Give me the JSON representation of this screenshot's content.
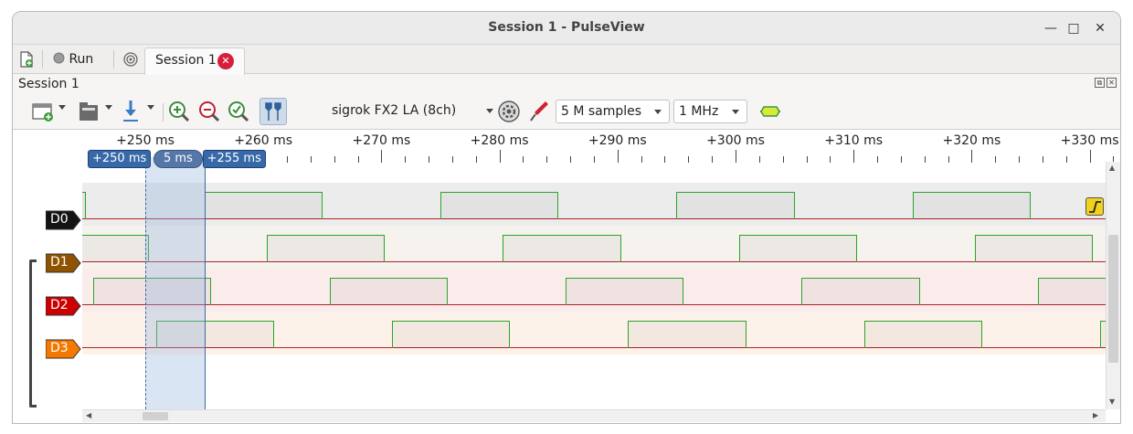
{
  "window": {
    "title": "Session 1 - PulseView",
    "controls": [
      "minimize-icon",
      "maximize-icon",
      "close-icon"
    ]
  },
  "tabbar": {
    "new_session_icon": "new-document-icon",
    "run_label": "Run",
    "run_icon": "record-dot-icon",
    "tab_label": "Session 1",
    "tab_close_icon": "close-circle-icon"
  },
  "session": {
    "label": "Session 1"
  },
  "toolbar": {
    "device": "sigrok FX2 LA (8ch)",
    "samples": "5 M samples",
    "samplerate": "1 MHz",
    "icons": [
      "add-view-icon",
      "open-file-icon",
      "download-icon",
      "zoom-in-icon",
      "zoom-out-icon",
      "zoom-fit-icon",
      "cursors-icon",
      "config-gear-icon",
      "probe-icon",
      "decoder-icon"
    ]
  },
  "ruler": {
    "labels": [
      "+250 ms",
      "+260 ms",
      "+270 ms",
      "+280 ms",
      "+290 ms",
      "+300 ms",
      "+310 ms",
      "+320 ms",
      "+330 ms"
    ]
  },
  "cursors": {
    "left": "+250 ms",
    "width": "5 ms",
    "right": "+255 ms"
  },
  "channels": [
    {
      "name": "D0",
      "color": "#141414",
      "bg": "#ececec"
    },
    {
      "name": "D1",
      "color": "#8f5200",
      "bg": "#f6f2ee"
    },
    {
      "name": "D2",
      "color": "#cc0000",
      "bg": "#fbecec"
    },
    {
      "name": "D3",
      "color": "#f57900",
      "bg": "#fdf2ea"
    }
  ],
  "waveform": {
    "period_ms": 20,
    "high_ms": 10,
    "rise_ms": [
      255,
      260.3,
      265.6,
      270.9
    ],
    "start_ms": 246,
    "end_ms": 332.6
  },
  "colors": {
    "high_line": "#2aa52a",
    "low_line": "#b2222b",
    "cursor": "#3769a8"
  }
}
